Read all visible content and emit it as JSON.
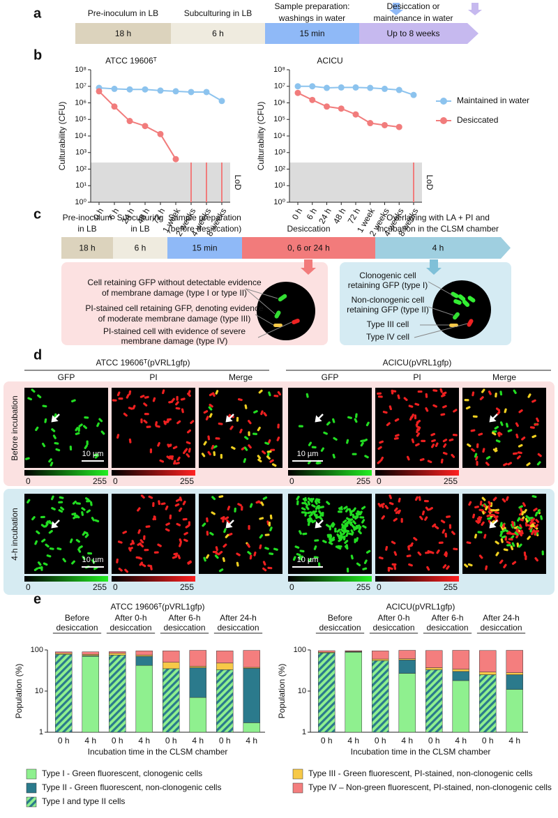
{
  "panel_letters": [
    "a",
    "b",
    "c",
    "d",
    "e"
  ],
  "timeline_a": [
    {
      "label": [
        "Pre-inoculum in LB"
      ],
      "duration": "18 h",
      "color": "#dcd3bd"
    },
    {
      "label": [
        "Subculturing in LB"
      ],
      "duration": "6 h",
      "color": "#efebdf"
    },
    {
      "label": [
        "Sample preparation:",
        "washings in water"
      ],
      "duration": "15 min",
      "color": "#8fb9f7"
    },
    {
      "label": [
        "Desiccation or",
        "maintenance in water"
      ],
      "duration": "Up to 8 weeks",
      "color": "#c6b9ef"
    }
  ],
  "timeline_c": [
    {
      "label": [
        "Pre-inoculum",
        "in LB"
      ],
      "duration": "18 h",
      "color": "#dcd3bd"
    },
    {
      "label": [
        "Subculturing",
        "in LB"
      ],
      "duration": "6 h",
      "color": "#efebdf"
    },
    {
      "label": [
        "Sample preparation",
        "(before desiccation)"
      ],
      "duration": "15 min",
      "color": "#8fb9f7"
    },
    {
      "label": [
        "Desiccation"
      ],
      "duration": "0, 6 or 24 h",
      "color": "#f27b7b"
    },
    {
      "label": [
        "Overlaying with LA + PI and",
        "incubation in the CLSM chamber"
      ],
      "duration": "4 h",
      "color": "#9fcfe0"
    }
  ],
  "damage_box": [
    [
      "Cell retaining GFP without detectable evidence",
      "of membrane damage (type I or type II)"
    ],
    [
      "PI-stained cell retaining GFP, denoting evidence",
      "of moderate membrane damage (type III)"
    ],
    [
      "PI-stained cell with evidence of severe",
      "membrane damage (type IV)"
    ]
  ],
  "incubation_box": [
    [
      "Clonogenic cell",
      "retaining GFP (type I)"
    ],
    [
      "Non-clonogenic cell",
      "retaining GFP (type II)"
    ],
    [
      "Type III cell"
    ],
    [
      "Type IV cell"
    ]
  ],
  "panel_d": {
    "strains": [
      "ATCC 19606ᵀ(pVRL1gfp)",
      "ACICU(pVRL1gfp)"
    ],
    "channels": [
      "GFP",
      "PI",
      "Merge"
    ],
    "rows": [
      "Before incubation",
      "4-h incubation"
    ],
    "scale_bar": "10 µm",
    "colorbar_ticks": [
      0,
      255
    ]
  },
  "chart_data": [
    {
      "type": "line",
      "title": "ATCC 19606ᵀ",
      "ylabel": "Culturability (CFU)",
      "categories": [
        "0 h",
        "6 h",
        "24 h",
        "48 h",
        "72 h",
        "1 week",
        "2 weeks",
        "4 weeks",
        "8 weeks"
      ],
      "log_y": true,
      "ylim": [
        1,
        100000000
      ],
      "yticks": [
        {
          "value": 1,
          "label": "10⁰"
        },
        {
          "value": 10,
          "label": "10¹"
        },
        {
          "value": 100,
          "label": "10²"
        },
        {
          "value": 1000,
          "label": "10³"
        },
        {
          "value": 10000,
          "label": "10⁴"
        },
        {
          "value": 100000,
          "label": "10⁵"
        },
        {
          "value": 1000000,
          "label": "10⁶"
        },
        {
          "value": 10000000,
          "label": "10⁷"
        },
        {
          "value": 100000000,
          "label": "10⁸"
        }
      ],
      "lod": 250,
      "lod_label": "LoD",
      "series": [
        {
          "name": "Maintained in water",
          "color": "#8cc3ee",
          "values": [
            8000000,
            7000000,
            6500000,
            6500000,
            5500000,
            5000000,
            4500000,
            4500000,
            1300000
          ]
        },
        {
          "name": "Desiccated",
          "color": "#f17c7c",
          "values": [
            5000000,
            600000,
            80000,
            40000,
            13000,
            400,
            null,
            null,
            null
          ],
          "below_lod": [
            6,
            7,
            8
          ]
        }
      ]
    },
    {
      "type": "line",
      "title": "ACICU",
      "ylabel": "Culturability (CFU)",
      "categories": [
        "0 h",
        "6 h",
        "24 h",
        "48 h",
        "72 h",
        "1 week",
        "2 weeks",
        "4 weeks",
        "8 weeks"
      ],
      "log_y": true,
      "ylim": [
        1,
        100000000
      ],
      "yticks": [
        {
          "value": 1,
          "label": "10⁰"
        },
        {
          "value": 10,
          "label": "10¹"
        },
        {
          "value": 100,
          "label": "10²"
        },
        {
          "value": 1000,
          "label": "10³"
        },
        {
          "value": 10000,
          "label": "10⁴"
        },
        {
          "value": 100000,
          "label": "10⁵"
        },
        {
          "value": 1000000,
          "label": "10⁶"
        },
        {
          "value": 10000000,
          "label": "10⁷"
        },
        {
          "value": 100000000,
          "label": "10⁸"
        }
      ],
      "lod": 250,
      "lod_label": "LoD",
      "series": [
        {
          "color": "#8cc3ee",
          "values": [
            10000000,
            10000000,
            8000000,
            8500000,
            8500000,
            8000000,
            7000000,
            6000000,
            3000000
          ]
        },
        {
          "color": "#f17c7c",
          "values": [
            4000000,
            1500000,
            600000,
            450000,
            200000,
            60000,
            45000,
            35000,
            null
          ],
          "below_lod": [
            8
          ]
        }
      ]
    },
    {
      "type": "stacked_bar",
      "title": "ATCC 19606ᵀ(pVRL1gfp)",
      "ylabel": "Population (%)",
      "xlabel": "Incubation time in the CLSM chamber",
      "groups": [
        [
          "Before",
          "desiccation"
        ],
        [
          "After 0-h",
          "desiccation"
        ],
        [
          "After 6-h",
          "desiccation"
        ],
        [
          "After 24-h",
          "desiccation"
        ]
      ],
      "categories": [
        "0 h",
        "4 h",
        "0 h",
        "4 h",
        "0 h",
        "4 h",
        "0 h",
        "4 h"
      ],
      "log_y": true,
      "ylim": [
        1,
        100
      ],
      "yticks": [
        1,
        10,
        100
      ],
      "series": [
        {
          "name": "Type I and type II cells",
          "color": "#8ff08f",
          "hatch_color": "#2b7a8c",
          "values": [
            78,
            null,
            75,
            null,
            35,
            null,
            33,
            null
          ]
        },
        {
          "name": "Type I - Green fluorescent, clonogenic cells",
          "color": "#8ff08f",
          "values": [
            null,
            70,
            null,
            42,
            null,
            7,
            null,
            1.7
          ]
        },
        {
          "name": "Type II - Green fluorescent, non-clonogenic cells",
          "color": "#2b7a8c",
          "values": [
            null,
            3,
            null,
            28,
            null,
            30,
            null,
            34
          ]
        },
        {
          "name": "Type III - Green fluorescent, PI-stained, non-clonogenic cells",
          "color": "#f7c948",
          "values": [
            5,
            5,
            8,
            5,
            15,
            3,
            15,
            2
          ]
        },
        {
          "name": "Type IV – Non-green fluorescent, PI-stained, non-clonogenic cells",
          "color": "#f47e7e",
          "values": [
            7,
            12,
            8,
            20,
            45,
            58,
            47,
            60
          ]
        }
      ]
    },
    {
      "type": "stacked_bar",
      "title": "ACICU(pVRL1gfp)",
      "ylabel": "Population (%)",
      "xlabel": "Incubation time in the CLSM chamber",
      "groups": [
        [
          "Before",
          "desiccation"
        ],
        [
          "After 0-h",
          "desiccation"
        ],
        [
          "After 6-h",
          "desiccation"
        ],
        [
          "After 24-h",
          "desiccation"
        ]
      ],
      "categories": [
        "0 h",
        "4 h",
        "0 h",
        "4 h",
        "0 h",
        "4 h",
        "0 h",
        "4 h"
      ],
      "log_y": true,
      "ylim": [
        1,
        100
      ],
      "yticks": [
        1,
        10,
        100
      ],
      "series": [
        {
          "color": "#8ff08f",
          "hatch_color": "#2b7a8c",
          "values": [
            85,
            null,
            55,
            null,
            33,
            null,
            25,
            null
          ]
        },
        {
          "color": "#8ff08f",
          "values": [
            null,
            88,
            null,
            27,
            null,
            18,
            null,
            11
          ]
        },
        {
          "color": "#2b7a8c",
          "values": [
            null,
            2,
            null,
            30,
            null,
            12,
            null,
            14
          ]
        },
        {
          "color": "#f7c948",
          "values": [
            3,
            2,
            5,
            4,
            4,
            4,
            4,
            3
          ]
        },
        {
          "color": "#f47e7e",
          "values": [
            8,
            4,
            35,
            37,
            60,
            64,
            68,
            70
          ]
        }
      ]
    }
  ]
}
